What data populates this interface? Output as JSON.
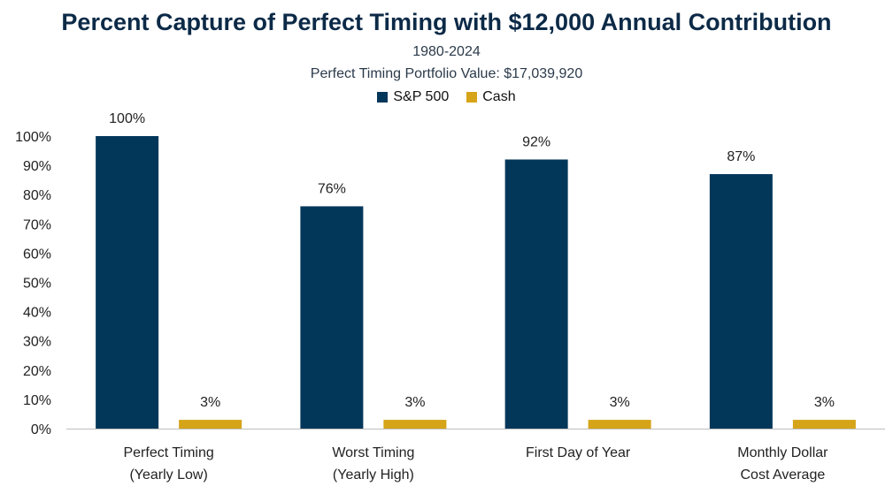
{
  "chart_data": {
    "type": "bar",
    "title": "Percent Capture of Perfect Timing with $12,000 Annual Contribution",
    "subtitle_lines": [
      "1980-2024",
      "Perfect Timing Portfolio Value: $17,039,920"
    ],
    "categories": [
      [
        "Perfect Timing",
        "(Yearly Low)"
      ],
      [
        "Worst Timing",
        "(Yearly High)"
      ],
      [
        "First Day of Year"
      ],
      [
        "Monthly Dollar",
        "Cost Average"
      ]
    ],
    "series": [
      {
        "name": "S&P 500",
        "color": "#03375a",
        "values": [
          100,
          76,
          92,
          87
        ],
        "labels": [
          "100%",
          "76%",
          "92%",
          "87%"
        ]
      },
      {
        "name": "Cash",
        "color": "#d6a418",
        "values": [
          3,
          3,
          3,
          3
        ],
        "labels": [
          "3%",
          "3%",
          "3%",
          "3%"
        ]
      }
    ],
    "ylim": [
      0,
      100
    ],
    "yticks": [
      "0%",
      "10%",
      "20%",
      "30%",
      "40%",
      "50%",
      "60%",
      "70%",
      "80%",
      "90%",
      "100%"
    ],
    "grid": false,
    "legend_position": "top-center"
  }
}
